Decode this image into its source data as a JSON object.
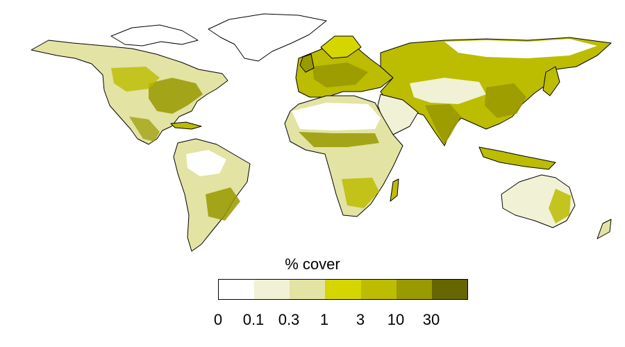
{
  "legend": {
    "title": "% cover",
    "classes": [
      {
        "color": "#ffffff"
      },
      {
        "color": "#f1f1d6"
      },
      {
        "color": "#e3e3a4"
      },
      {
        "color": "#d5d500"
      },
      {
        "color": "#bcbc00"
      },
      {
        "color": "#999900"
      },
      {
        "color": "#666600"
      }
    ],
    "tick_labels": [
      "0",
      "0.1",
      "0.3",
      "1",
      "3",
      "10",
      "30"
    ]
  },
  "map": {
    "projection": "equirectangular-world",
    "variable": "% cover",
    "outline_color": "#000000"
  }
}
